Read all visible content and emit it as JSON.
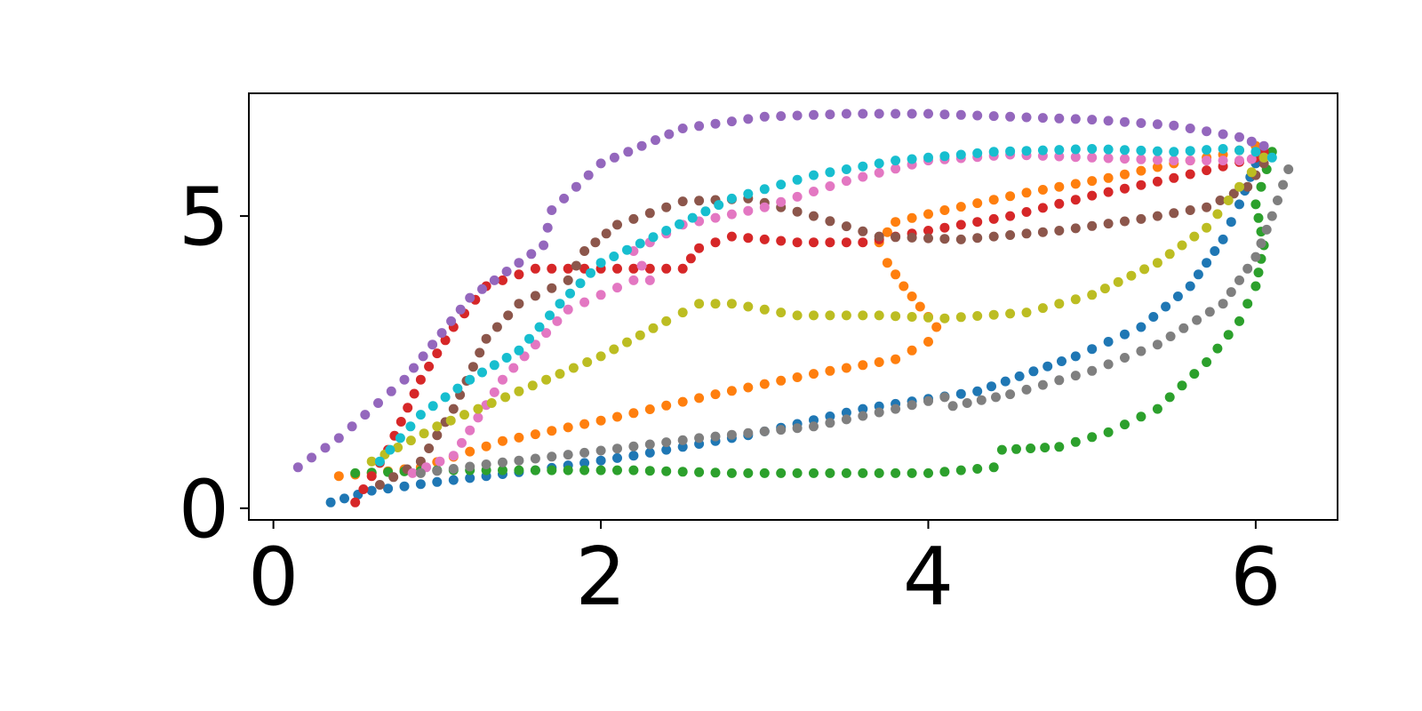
{
  "chart_data": {
    "type": "scatter",
    "title": "",
    "xlabel": "",
    "ylabel": "",
    "xlim": [
      -0.15,
      6.5
    ],
    "ylim": [
      -0.2,
      7.1
    ],
    "xticks": [
      0,
      2,
      4,
      6
    ],
    "yticks": [
      0,
      5
    ],
    "xtick_labels": [
      "0",
      "2",
      "4",
      "6"
    ],
    "ytick_labels": [
      "0",
      "5"
    ],
    "grid": false,
    "legend": "none",
    "series": [
      {
        "color": "#1f77b4",
        "x": [
          0.35,
          0.6,
          1.0,
          1.6,
          2.2,
          2.9,
          3.6,
          4.3,
          4.9,
          5.3,
          5.6,
          5.8,
          5.9,
          6.0,
          6.05,
          6.0
        ],
        "y": [
          0.1,
          0.3,
          0.45,
          0.65,
          0.9,
          1.25,
          1.7,
          2.0,
          2.6,
          3.1,
          3.8,
          4.6,
          5.2,
          5.9,
          6.1,
          6.2
        ]
      },
      {
        "color": "#ff7f0e",
        "x": [
          0.4,
          0.6,
          0.9,
          1.4,
          2.0,
          2.7,
          3.3,
          3.8,
          4.0,
          4.05,
          3.95,
          3.85,
          3.75,
          3.7,
          3.8,
          4.1,
          4.6,
          5.1,
          5.5,
          5.8,
          6.0
        ],
        "y": [
          0.55,
          0.6,
          0.7,
          1.15,
          1.5,
          1.95,
          2.3,
          2.55,
          2.85,
          3.1,
          3.45,
          3.8,
          4.2,
          4.55,
          4.9,
          5.1,
          5.4,
          5.65,
          5.9,
          6.05,
          6.2
        ]
      },
      {
        "color": "#2ca02c",
        "x": [
          0.5,
          1.0,
          1.6,
          2.2,
          2.8,
          3.4,
          4.0,
          4.4,
          4.45,
          4.8,
          5.1,
          5.4,
          5.7,
          5.9,
          6.0,
          6.05,
          6.0,
          6.1
        ],
        "y": [
          0.6,
          0.65,
          0.65,
          0.65,
          0.6,
          0.6,
          0.6,
          0.7,
          1.0,
          1.05,
          1.3,
          1.7,
          2.5,
          3.2,
          3.8,
          4.5,
          5.2,
          6.1
        ]
      },
      {
        "color": "#d62728",
        "x": [
          0.5,
          0.7,
          0.9,
          1.1,
          1.3,
          1.6,
          2.1,
          2.5,
          2.6,
          2.8,
          3.2,
          3.6,
          4.0,
          4.5,
          5.0,
          5.5,
          5.8,
          6.0,
          6.05
        ],
        "y": [
          0.1,
          1.0,
          2.2,
          3.1,
          3.8,
          4.1,
          4.1,
          4.1,
          4.45,
          4.65,
          4.55,
          4.55,
          4.75,
          5.0,
          5.35,
          5.65,
          5.85,
          6.0,
          6.1
        ]
      },
      {
        "color": "#9467bd",
        "x": [
          0.15,
          0.4,
          0.8,
          1.2,
          1.5,
          1.65,
          1.7,
          2.0,
          2.5,
          3.0,
          3.5,
          4.0,
          4.5,
          5.0,
          5.5,
          5.9,
          6.05
        ],
        "y": [
          0.7,
          1.2,
          2.2,
          3.6,
          4.2,
          4.5,
          5.1,
          5.9,
          6.5,
          6.7,
          6.75,
          6.75,
          6.7,
          6.65,
          6.55,
          6.35,
          6.2
        ]
      },
      {
        "color": "#8c564b",
        "x": [
          0.65,
          0.9,
          1.1,
          1.3,
          1.5,
          1.8,
          1.9,
          2.1,
          2.5,
          2.9,
          3.3,
          3.7,
          4.2,
          4.8,
          5.3,
          5.7,
          5.95,
          6.05
        ],
        "y": [
          0.4,
          0.8,
          1.7,
          2.9,
          3.5,
          3.9,
          4.4,
          4.85,
          5.25,
          5.3,
          5.0,
          4.65,
          4.6,
          4.75,
          4.95,
          5.15,
          5.5,
          5.9
        ]
      },
      {
        "color": "#e377c2",
        "x": [
          0.85,
          1.1,
          1.4,
          1.8,
          2.2,
          2.3,
          2.2,
          2.5,
          3.0,
          3.5,
          4.0,
          4.5,
          5.0,
          5.5,
          5.9,
          6.05
        ],
        "y": [
          0.6,
          0.9,
          2.2,
          3.4,
          3.9,
          3.9,
          4.4,
          4.85,
          5.15,
          5.6,
          5.95,
          6.05,
          6.0,
          5.95,
          5.95,
          6.0
        ]
      },
      {
        "color": "#7f7f7f",
        "x": [
          0.9,
          1.3,
          1.9,
          2.6,
          3.3,
          3.8,
          4.1,
          4.15,
          4.5,
          5.0,
          5.4,
          5.8,
          6.0,
          6.1,
          6.2
        ],
        "y": [
          0.6,
          0.75,
          0.95,
          1.2,
          1.4,
          1.7,
          1.9,
          1.75,
          1.95,
          2.35,
          2.8,
          3.5,
          4.3,
          5.0,
          5.8
        ]
      },
      {
        "color": "#bcbd22",
        "x": [
          0.6,
          1.0,
          1.5,
          2.0,
          2.4,
          2.6,
          2.8,
          3.2,
          3.7,
          4.1,
          4.6,
          5.0,
          5.4,
          5.7,
          5.9,
          6.05
        ],
        "y": [
          0.8,
          1.4,
          2.0,
          2.6,
          3.2,
          3.5,
          3.5,
          3.3,
          3.3,
          3.25,
          3.35,
          3.65,
          4.2,
          4.8,
          5.5,
          6.0
        ]
      },
      {
        "color": "#17becf",
        "x": [
          0.65,
          0.9,
          1.2,
          1.5,
          1.75,
          2.0,
          2.4,
          2.8,
          3.3,
          3.8,
          4.4,
          5.0,
          5.5,
          5.8,
          6.0,
          6.1
        ],
        "y": [
          0.8,
          1.6,
          2.2,
          2.7,
          3.5,
          4.2,
          4.75,
          5.3,
          5.7,
          5.95,
          6.1,
          6.15,
          6.1,
          6.15,
          6.1,
          6.0
        ]
      }
    ]
  }
}
